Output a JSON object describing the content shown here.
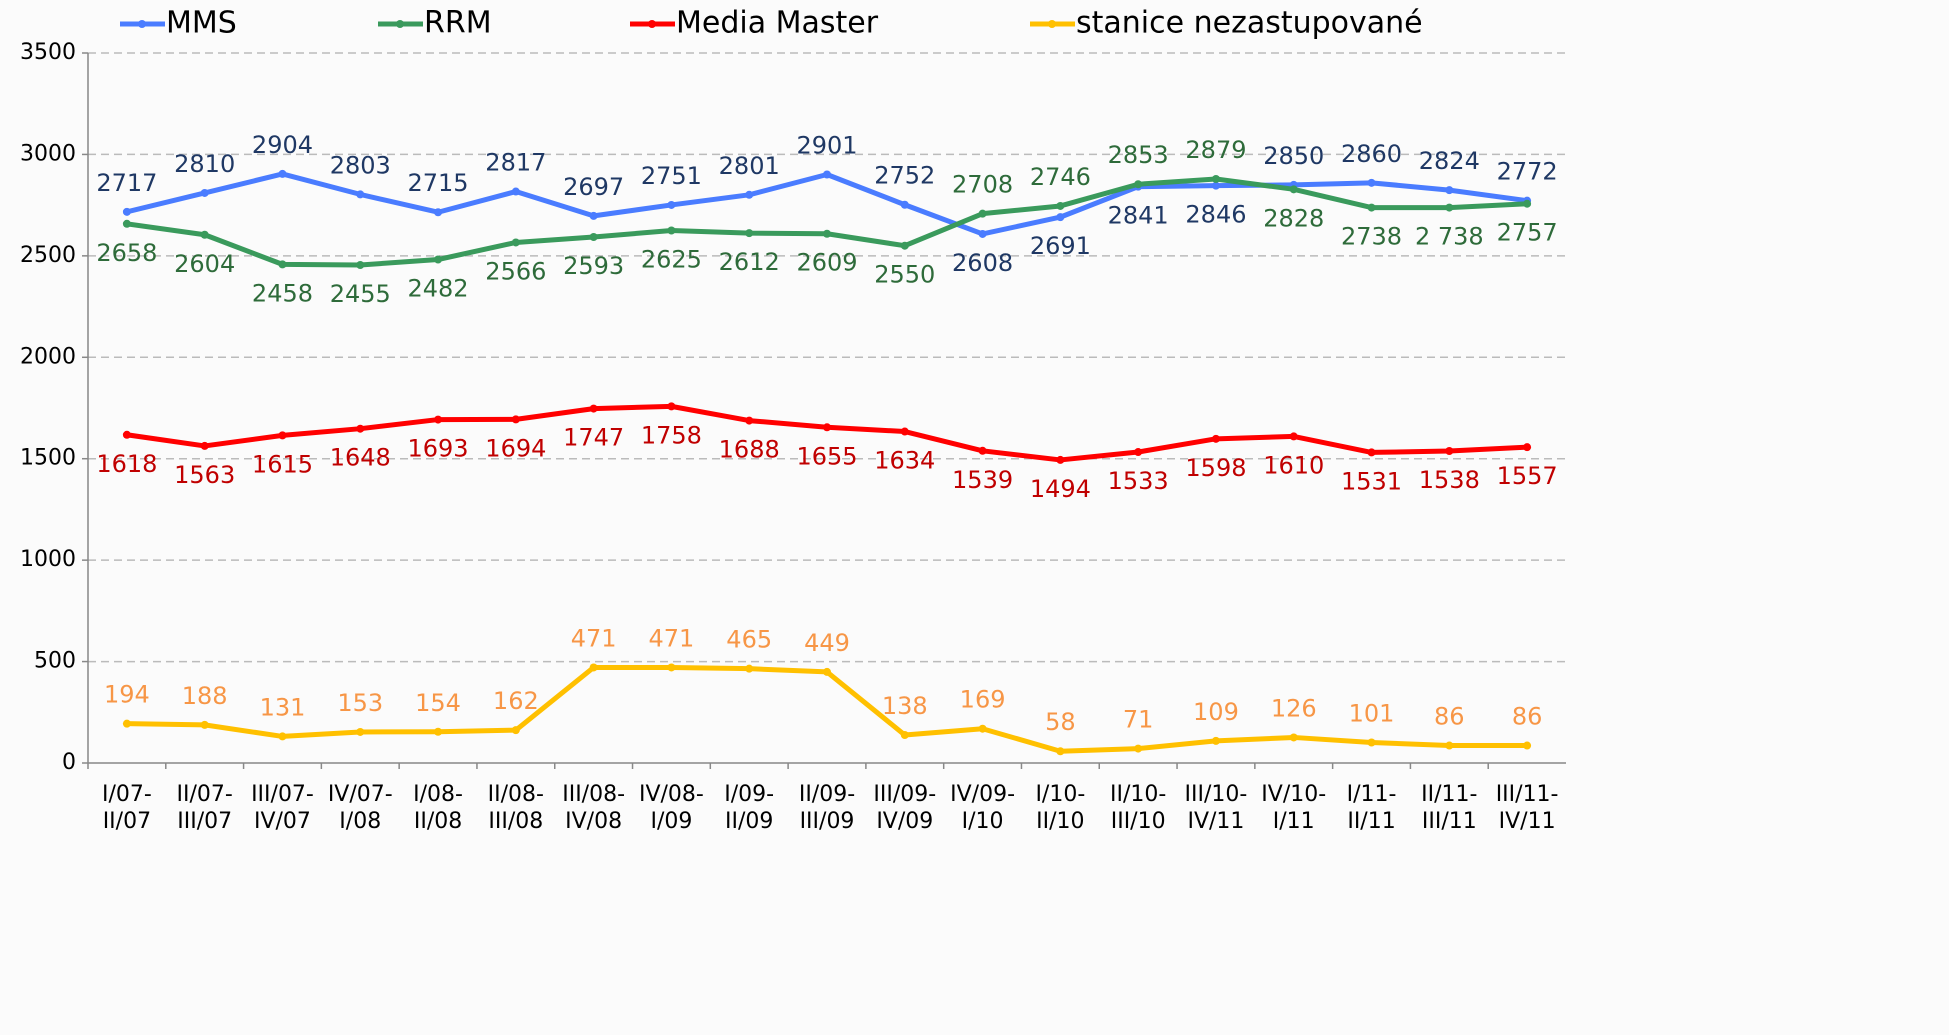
{
  "chart_data": {
    "type": "line",
    "categories": [
      [
        "I/07-",
        "II/07"
      ],
      [
        "II/07-",
        "III/07"
      ],
      [
        "III/07-",
        "IV/07"
      ],
      [
        "IV/07-",
        "I/08"
      ],
      [
        "I/08-",
        "II/08"
      ],
      [
        "II/08-",
        "III/08"
      ],
      [
        "III/08-",
        "IV/08"
      ],
      [
        "IV/08-",
        "I/09"
      ],
      [
        "I/09-",
        "II/09"
      ],
      [
        "II/09-",
        "III/09"
      ],
      [
        "III/09-",
        "IV/09"
      ],
      [
        "IV/09-",
        "I/10"
      ],
      [
        "I/10-",
        "II/10"
      ],
      [
        "II/10-",
        "III/10"
      ],
      [
        "III/10-",
        "IV/11"
      ],
      [
        "IV/10-",
        "I/11"
      ],
      [
        "I/11-",
        "II/11"
      ],
      [
        "II/11-",
        "III/11"
      ],
      [
        "III/11-",
        "IV/11"
      ]
    ],
    "series": [
      {
        "name": "MMS",
        "color": "#4a7cff",
        "label_color": "#1f3864",
        "values": [
          2717,
          2810,
          2904,
          2803,
          2715,
          2817,
          2697,
          2751,
          2801,
          2901,
          2752,
          2608,
          2691,
          2841,
          2846,
          2850,
          2860,
          2824,
          2772
        ]
      },
      {
        "name": "RRM",
        "color": "#3a9a5c",
        "label_color": "#2e6b3a",
        "values": [
          2658,
          2604,
          2458,
          2455,
          2482,
          2566,
          2593,
          2625,
          2612,
          2609,
          2550,
          2708,
          2746,
          2853,
          2879,
          2828,
          2738,
          2738,
          2757
        ],
        "value_labels": [
          "2658",
          "2604",
          "2458",
          "2455",
          "2482",
          "2566",
          "2593",
          "2625",
          "2612",
          "2609",
          "2550",
          "2708",
          "2746",
          "2853",
          "2879",
          "2828",
          "2738",
          "2 738",
          "2757"
        ]
      },
      {
        "name": "Media Master",
        "color": "#ff0000",
        "label_color": "#c00000",
        "values": [
          1618,
          1563,
          1615,
          1648,
          1693,
          1694,
          1747,
          1758,
          1688,
          1655,
          1634,
          1539,
          1494,
          1533,
          1598,
          1610,
          1531,
          1538,
          1557
        ]
      },
      {
        "name": "stanice nezastupované",
        "color": "#ffc000",
        "label_color": "#f79646",
        "values": [
          194,
          188,
          131,
          153,
          154,
          162,
          471,
          471,
          465,
          449,
          138,
          169,
          58,
          71,
          109,
          126,
          101,
          86,
          86
        ]
      }
    ],
    "ylim": [
      0,
      3500
    ],
    "yticks": [
      0,
      500,
      1000,
      1500,
      2000,
      2500,
      3000,
      3500
    ],
    "grid": true
  }
}
